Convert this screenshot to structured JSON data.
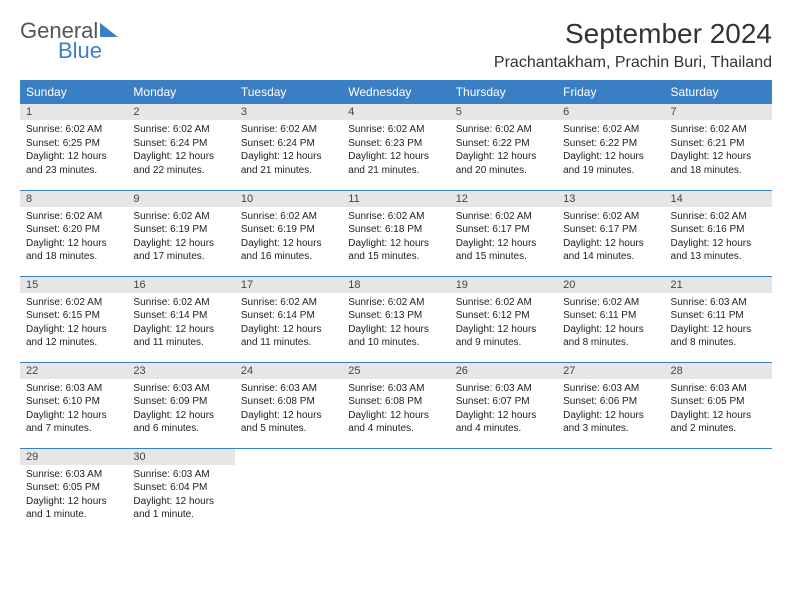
{
  "logo": {
    "text1": "General",
    "text2": "Blue"
  },
  "title": "September 2024",
  "location": "Prachantakham, Prachin Buri, Thailand",
  "colors": {
    "header_bg": "#3a7fc4",
    "header_text": "#ffffff",
    "daynum_bg": "#e6e6e6",
    "rule": "#3a7fc4"
  },
  "weekdays": [
    "Sunday",
    "Monday",
    "Tuesday",
    "Wednesday",
    "Thursday",
    "Friday",
    "Saturday"
  ],
  "weeks": [
    [
      {
        "n": "1",
        "sr": "Sunrise: 6:02 AM",
        "ss": "Sunset: 6:25 PM",
        "d1": "Daylight: 12 hours",
        "d2": "and 23 minutes."
      },
      {
        "n": "2",
        "sr": "Sunrise: 6:02 AM",
        "ss": "Sunset: 6:24 PM",
        "d1": "Daylight: 12 hours",
        "d2": "and 22 minutes."
      },
      {
        "n": "3",
        "sr": "Sunrise: 6:02 AM",
        "ss": "Sunset: 6:24 PM",
        "d1": "Daylight: 12 hours",
        "d2": "and 21 minutes."
      },
      {
        "n": "4",
        "sr": "Sunrise: 6:02 AM",
        "ss": "Sunset: 6:23 PM",
        "d1": "Daylight: 12 hours",
        "d2": "and 21 minutes."
      },
      {
        "n": "5",
        "sr": "Sunrise: 6:02 AM",
        "ss": "Sunset: 6:22 PM",
        "d1": "Daylight: 12 hours",
        "d2": "and 20 minutes."
      },
      {
        "n": "6",
        "sr": "Sunrise: 6:02 AM",
        "ss": "Sunset: 6:22 PM",
        "d1": "Daylight: 12 hours",
        "d2": "and 19 minutes."
      },
      {
        "n": "7",
        "sr": "Sunrise: 6:02 AM",
        "ss": "Sunset: 6:21 PM",
        "d1": "Daylight: 12 hours",
        "d2": "and 18 minutes."
      }
    ],
    [
      {
        "n": "8",
        "sr": "Sunrise: 6:02 AM",
        "ss": "Sunset: 6:20 PM",
        "d1": "Daylight: 12 hours",
        "d2": "and 18 minutes."
      },
      {
        "n": "9",
        "sr": "Sunrise: 6:02 AM",
        "ss": "Sunset: 6:19 PM",
        "d1": "Daylight: 12 hours",
        "d2": "and 17 minutes."
      },
      {
        "n": "10",
        "sr": "Sunrise: 6:02 AM",
        "ss": "Sunset: 6:19 PM",
        "d1": "Daylight: 12 hours",
        "d2": "and 16 minutes."
      },
      {
        "n": "11",
        "sr": "Sunrise: 6:02 AM",
        "ss": "Sunset: 6:18 PM",
        "d1": "Daylight: 12 hours",
        "d2": "and 15 minutes."
      },
      {
        "n": "12",
        "sr": "Sunrise: 6:02 AM",
        "ss": "Sunset: 6:17 PM",
        "d1": "Daylight: 12 hours",
        "d2": "and 15 minutes."
      },
      {
        "n": "13",
        "sr": "Sunrise: 6:02 AM",
        "ss": "Sunset: 6:17 PM",
        "d1": "Daylight: 12 hours",
        "d2": "and 14 minutes."
      },
      {
        "n": "14",
        "sr": "Sunrise: 6:02 AM",
        "ss": "Sunset: 6:16 PM",
        "d1": "Daylight: 12 hours",
        "d2": "and 13 minutes."
      }
    ],
    [
      {
        "n": "15",
        "sr": "Sunrise: 6:02 AM",
        "ss": "Sunset: 6:15 PM",
        "d1": "Daylight: 12 hours",
        "d2": "and 12 minutes."
      },
      {
        "n": "16",
        "sr": "Sunrise: 6:02 AM",
        "ss": "Sunset: 6:14 PM",
        "d1": "Daylight: 12 hours",
        "d2": "and 11 minutes."
      },
      {
        "n": "17",
        "sr": "Sunrise: 6:02 AM",
        "ss": "Sunset: 6:14 PM",
        "d1": "Daylight: 12 hours",
        "d2": "and 11 minutes."
      },
      {
        "n": "18",
        "sr": "Sunrise: 6:02 AM",
        "ss": "Sunset: 6:13 PM",
        "d1": "Daylight: 12 hours",
        "d2": "and 10 minutes."
      },
      {
        "n": "19",
        "sr": "Sunrise: 6:02 AM",
        "ss": "Sunset: 6:12 PM",
        "d1": "Daylight: 12 hours",
        "d2": "and 9 minutes."
      },
      {
        "n": "20",
        "sr": "Sunrise: 6:02 AM",
        "ss": "Sunset: 6:11 PM",
        "d1": "Daylight: 12 hours",
        "d2": "and 8 minutes."
      },
      {
        "n": "21",
        "sr": "Sunrise: 6:03 AM",
        "ss": "Sunset: 6:11 PM",
        "d1": "Daylight: 12 hours",
        "d2": "and 8 minutes."
      }
    ],
    [
      {
        "n": "22",
        "sr": "Sunrise: 6:03 AM",
        "ss": "Sunset: 6:10 PM",
        "d1": "Daylight: 12 hours",
        "d2": "and 7 minutes."
      },
      {
        "n": "23",
        "sr": "Sunrise: 6:03 AM",
        "ss": "Sunset: 6:09 PM",
        "d1": "Daylight: 12 hours",
        "d2": "and 6 minutes."
      },
      {
        "n": "24",
        "sr": "Sunrise: 6:03 AM",
        "ss": "Sunset: 6:08 PM",
        "d1": "Daylight: 12 hours",
        "d2": "and 5 minutes."
      },
      {
        "n": "25",
        "sr": "Sunrise: 6:03 AM",
        "ss": "Sunset: 6:08 PM",
        "d1": "Daylight: 12 hours",
        "d2": "and 4 minutes."
      },
      {
        "n": "26",
        "sr": "Sunrise: 6:03 AM",
        "ss": "Sunset: 6:07 PM",
        "d1": "Daylight: 12 hours",
        "d2": "and 4 minutes."
      },
      {
        "n": "27",
        "sr": "Sunrise: 6:03 AM",
        "ss": "Sunset: 6:06 PM",
        "d1": "Daylight: 12 hours",
        "d2": "and 3 minutes."
      },
      {
        "n": "28",
        "sr": "Sunrise: 6:03 AM",
        "ss": "Sunset: 6:05 PM",
        "d1": "Daylight: 12 hours",
        "d2": "and 2 minutes."
      }
    ],
    [
      {
        "n": "29",
        "sr": "Sunrise: 6:03 AM",
        "ss": "Sunset: 6:05 PM",
        "d1": "Daylight: 12 hours",
        "d2": "and 1 minute."
      },
      {
        "n": "30",
        "sr": "Sunrise: 6:03 AM",
        "ss": "Sunset: 6:04 PM",
        "d1": "Daylight: 12 hours",
        "d2": "and 1 minute."
      },
      {
        "empty": true
      },
      {
        "empty": true
      },
      {
        "empty": true
      },
      {
        "empty": true
      },
      {
        "empty": true
      }
    ]
  ]
}
